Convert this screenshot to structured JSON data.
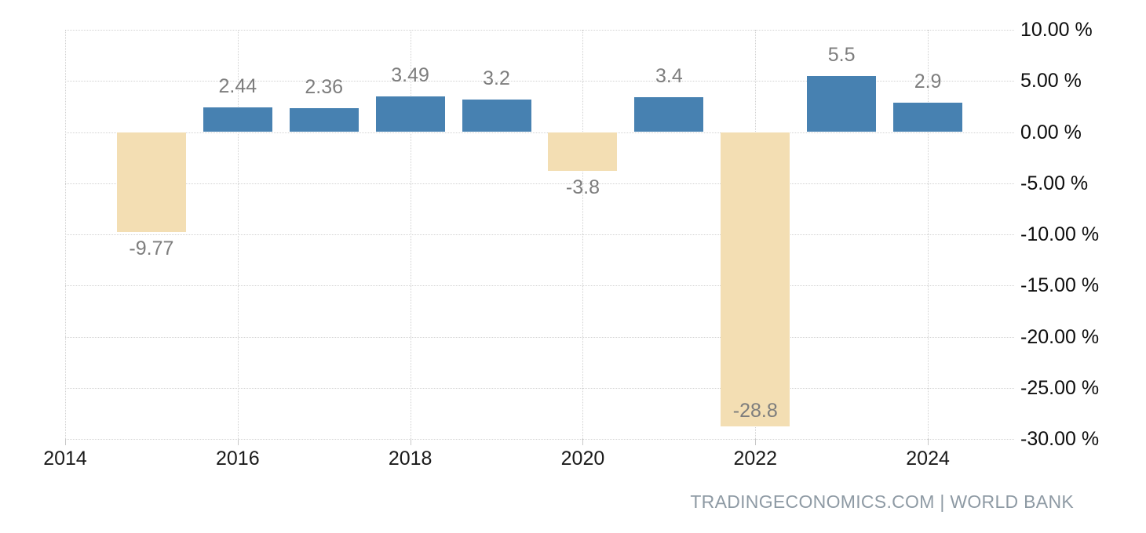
{
  "chart_data": {
    "type": "bar",
    "title": "",
    "xlabel": "",
    "ylabel": "",
    "xlim": [
      2014,
      2025
    ],
    "ylim": [
      -30,
      10
    ],
    "grid": "dotted",
    "legend": "none",
    "bars": [
      {
        "year": 2015,
        "value": -9.77,
        "label": "-9.77"
      },
      {
        "year": 2016,
        "value": 2.44,
        "label": "2.44"
      },
      {
        "year": 2017,
        "value": 2.36,
        "label": "2.36"
      },
      {
        "year": 2018,
        "value": 3.49,
        "label": "3.49"
      },
      {
        "year": 2019,
        "value": 3.2,
        "label": "3.2"
      },
      {
        "year": 2020,
        "value": -3.8,
        "label": "-3.8"
      },
      {
        "year": 2021,
        "value": 3.4,
        "label": "3.4"
      },
      {
        "year": 2022,
        "value": -28.8,
        "label": "-28.8"
      },
      {
        "year": 2023,
        "value": 5.5,
        "label": "5.5"
      },
      {
        "year": 2024,
        "value": 2.9,
        "label": "2.9"
      }
    ],
    "x_ticks": [
      {
        "value": 2014,
        "label": "2014"
      },
      {
        "value": 2016,
        "label": "2016"
      },
      {
        "value": 2018,
        "label": "2018"
      },
      {
        "value": 2020,
        "label": "2020"
      },
      {
        "value": 2022,
        "label": "2022"
      },
      {
        "value": 2024,
        "label": "2024"
      }
    ],
    "y_ticks": [
      {
        "value": 10,
        "label": "10.00 %"
      },
      {
        "value": 5,
        "label": "5.00 %"
      },
      {
        "value": 0,
        "label": "0.00 %"
      },
      {
        "value": -5,
        "label": "-5.00 %"
      },
      {
        "value": -10,
        "label": "-10.00 %"
      },
      {
        "value": -15,
        "label": "-15.00 %"
      },
      {
        "value": -20,
        "label": "-20.00 %"
      },
      {
        "value": -25,
        "label": "-25.00 %"
      },
      {
        "value": -30,
        "label": "-30.00 %"
      }
    ],
    "colors": {
      "positive_bar": "#4781b1",
      "negative_bar": "#f3deb3",
      "gridline": "#d2d2d2",
      "value_label": "#7d7d7d",
      "axis_label": "#0d0d0d",
      "attribution": "#8e9aa4"
    }
  },
  "footer": {
    "text": "TRADINGECONOMICS.COM | WORLD BANK"
  }
}
